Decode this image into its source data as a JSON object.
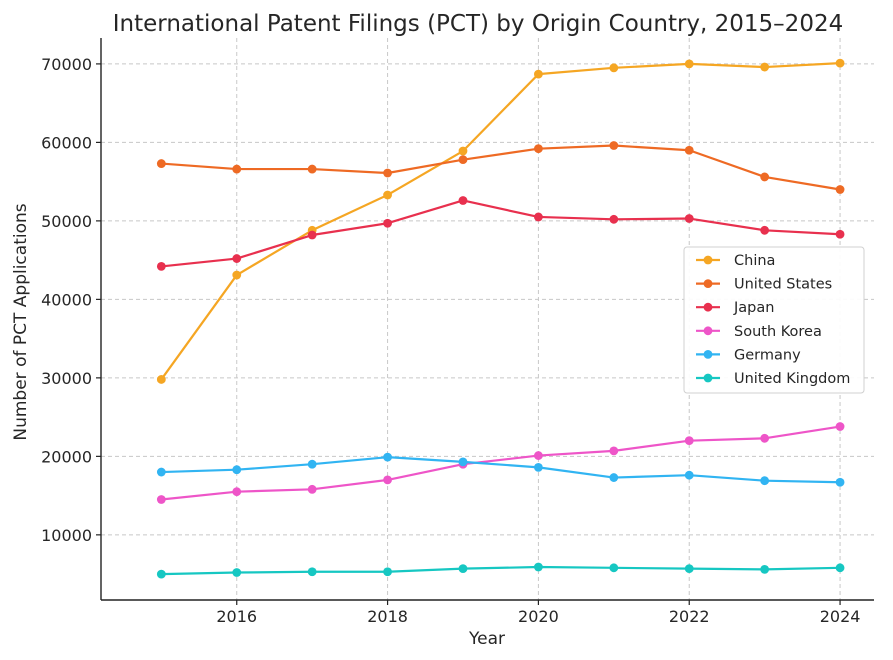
{
  "chart_data": {
    "type": "line",
    "title": "International Patent Filings (PCT) by Origin Country, 2015–2024",
    "xlabel": "Year",
    "ylabel": "Number of PCT Applications",
    "x": [
      2015,
      2016,
      2017,
      2018,
      2019,
      2020,
      2021,
      2022,
      2023,
      2024
    ],
    "xlim": [
      2014.2,
      2024.45
    ],
    "ylim": [
      1700,
      73300
    ],
    "xticks": [
      2016,
      2018,
      2020,
      2022,
      2024
    ],
    "yticks": [
      10000,
      20000,
      30000,
      40000,
      50000,
      60000,
      70000
    ],
    "grid": true,
    "legend_position": "center-right",
    "series": [
      {
        "name": "China",
        "color": "#f5a623",
        "values": [
          29800,
          43100,
          48800,
          53300,
          58900,
          68700,
          69500,
          70000,
          69600,
          70100
        ]
      },
      {
        "name": "United States",
        "color": "#ee6a24",
        "values": [
          57300,
          56600,
          56600,
          56100,
          57800,
          59200,
          59600,
          59000,
          55600,
          54000
        ]
      },
      {
        "name": "Japan",
        "color": "#e8304e",
        "values": [
          44200,
          45200,
          48200,
          49700,
          52600,
          50500,
          50200,
          50300,
          48800,
          48300
        ]
      },
      {
        "name": "South Korea",
        "color": "#ee55c8",
        "values": [
          14500,
          15500,
          15800,
          17000,
          19000,
          20100,
          20700,
          22000,
          22300,
          23800
        ]
      },
      {
        "name": "Germany",
        "color": "#31b4f2",
        "values": [
          18000,
          18300,
          19000,
          19900,
          19300,
          18600,
          17300,
          17600,
          16900,
          16700
        ]
      },
      {
        "name": "United Kingdom",
        "color": "#16c7c2",
        "values": [
          5000,
          5200,
          5300,
          5300,
          5700,
          5900,
          5800,
          5700,
          5600,
          5800
        ]
      }
    ]
  }
}
